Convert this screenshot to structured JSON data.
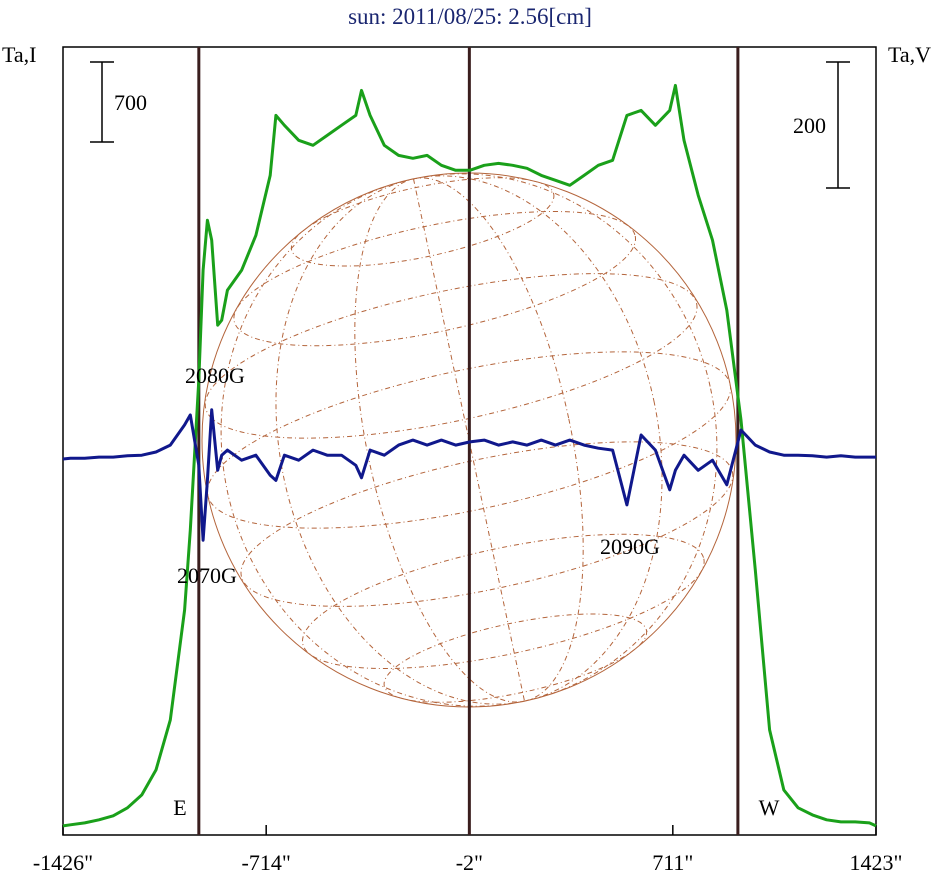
{
  "chart_data": {
    "type": "line",
    "title": "sun: 2011/08/25: 2.56[cm]",
    "y_label": "Ta,I",
    "y2_label": "Ta,V",
    "x": [
      -1426,
      -1400,
      -1350,
      -1300,
      -1250,
      -1200,
      -1150,
      -1100,
      -1050,
      -1000,
      -980,
      -950,
      -935,
      -920,
      -905,
      -884,
      -870,
      -850,
      -800,
      -750,
      -700,
      -680,
      -650,
      -600,
      -550,
      -500,
      -450,
      -400,
      -380,
      -350,
      -300,
      -250,
      -200,
      -150,
      -100,
      -50,
      0,
      50,
      100,
      150,
      200,
      250,
      300,
      350,
      400,
      450,
      500,
      550,
      600,
      650,
      700,
      720,
      750,
      800,
      850,
      900,
      950,
      1000,
      1050,
      1100,
      1150,
      1200,
      1250,
      1300,
      1350,
      1400,
      1423
    ],
    "series": [
      {
        "name": "I",
        "color": "#1aa01a",
        "axis": "y",
        "values": [
          0,
          9,
          26,
          53,
          88,
          158,
          271,
          490,
          928,
          1890,
          2590,
          3903,
          4865,
          5303,
          5128,
          4384,
          4428,
          4690,
          4865,
          5171,
          5696,
          6221,
          6134,
          6003,
          5959,
          6046,
          6134,
          6221,
          6440,
          6221,
          5959,
          5871,
          5845,
          5871,
          5784,
          5740,
          5740,
          5784,
          5801,
          5784,
          5758,
          5696,
          5653,
          5609,
          5696,
          5784,
          5828,
          6221,
          6265,
          6134,
          6265,
          6484,
          6003,
          5521,
          5128,
          4515,
          3553,
          2240,
          840,
          315,
          158,
          96,
          53,
          35,
          35,
          26,
          0
        ]
      },
      {
        "name": "V",
        "color": "#10188c",
        "axis": "y2",
        "values": [
          -3,
          -2,
          -2,
          0,
          0,
          2,
          3,
          8,
          19,
          51,
          67,
          -13,
          -132,
          -37,
          75,
          -21,
          3,
          11,
          -5,
          3,
          -29,
          -37,
          3,
          -5,
          11,
          3,
          3,
          -13,
          -33,
          11,
          3,
          19,
          27,
          19,
          27,
          19,
          24,
          27,
          19,
          24,
          19,
          27,
          19,
          27,
          19,
          14,
          11,
          -76,
          35,
          11,
          -52,
          -21,
          3,
          -21,
          -5,
          -44,
          43,
          19,
          8,
          3,
          3,
          2,
          0,
          2,
          0,
          0,
          0
        ]
      }
    ],
    "xlim": [
      -1426,
      1423
    ],
    "xticks": [
      {
        "value": -1426,
        "label": "-1426\""
      },
      {
        "value": -714,
        "label": "-714\""
      },
      {
        "value": -2,
        "label": "-2\""
      },
      {
        "value": 711,
        "label": "711\""
      },
      {
        "value": 1423,
        "label": "1423\""
      }
    ],
    "ylim": [
      -80,
      6820
    ],
    "y2lim": [
      -600,
      651
    ],
    "scale_bars": [
      {
        "axis": "y",
        "value": 700
      },
      {
        "axis": "y2",
        "value": 200
      }
    ],
    "vlines": [
      -950,
      -2,
      939
    ],
    "vline_color": "#3a1e1e",
    "annotations": [
      {
        "text": "2080G",
        "x": -950
      },
      {
        "text": "2070G",
        "x": -950
      },
      {
        "text": "2090G",
        "x": 711
      },
      {
        "text": "E",
        "x": -1000
      },
      {
        "text": "W",
        "x": 1050
      }
    ]
  }
}
